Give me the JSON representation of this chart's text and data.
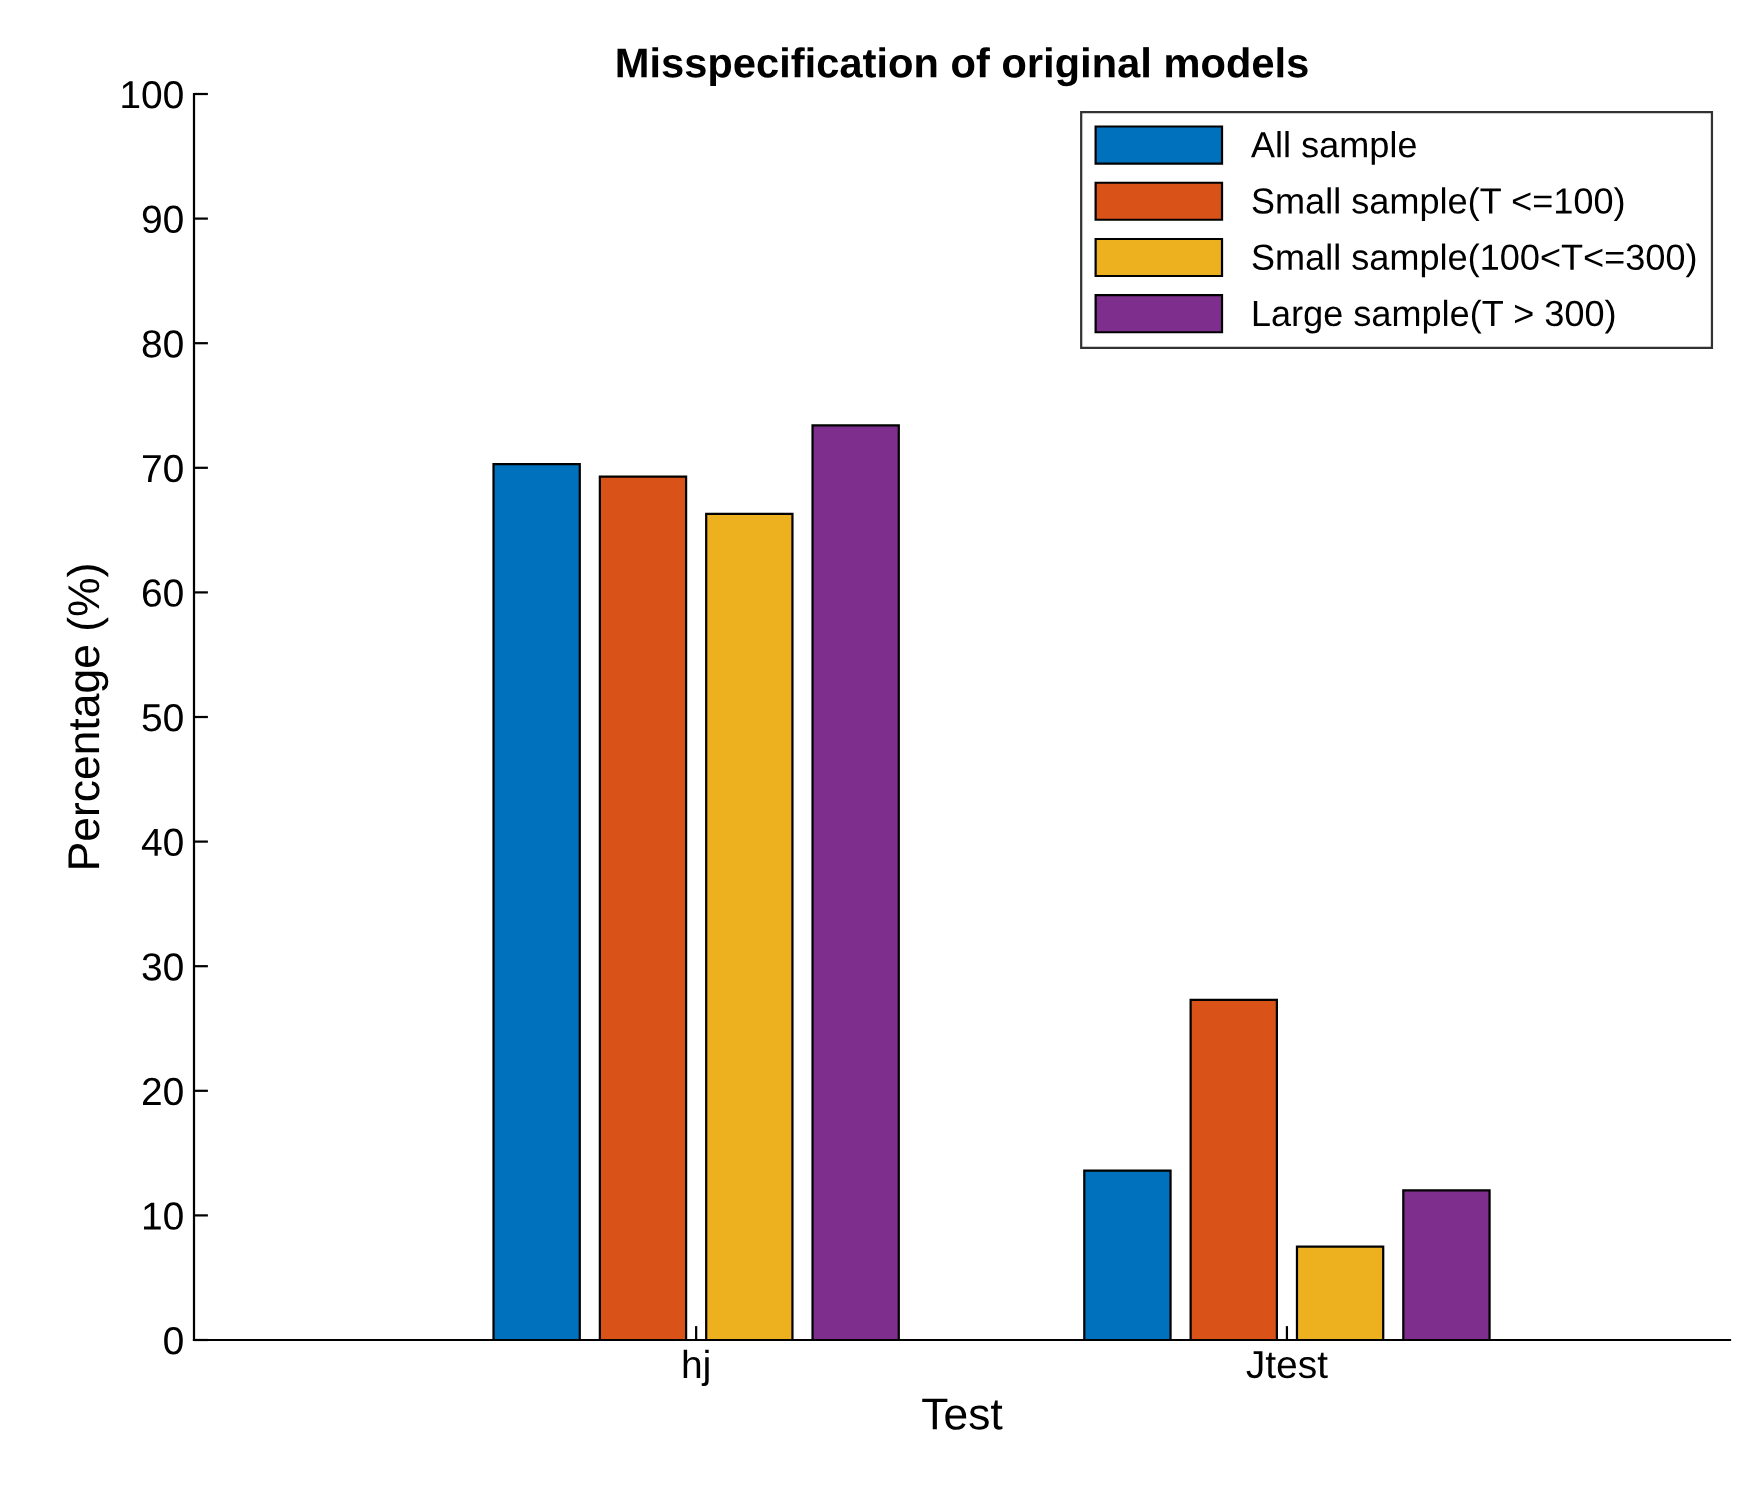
{
  "chart_data": {
    "type": "bar",
    "title": "Misspecification of original models",
    "xlabel": "Test",
    "ylabel": "Percentage (%)",
    "categories": [
      "hj",
      "Jtest"
    ],
    "series": [
      {
        "name": "All sample",
        "color": "#0072bd",
        "values": [
          70.3,
          13.6
        ]
      },
      {
        "name": "Small sample(T <=100)",
        "color": "#d95319",
        "values": [
          69.3,
          27.3
        ]
      },
      {
        "name": "Small sample(100<T<=300)",
        "color": "#edb120",
        "values": [
          66.3,
          7.5
        ]
      },
      {
        "name": "Large sample(T > 300)",
        "color": "#7e2f8e",
        "values": [
          73.4,
          12.0
        ]
      }
    ],
    "ylim": [
      0,
      100
    ],
    "yticks": [
      0,
      10,
      20,
      30,
      40,
      50,
      60,
      70,
      80,
      90,
      100
    ],
    "grid": false,
    "legend": "top right"
  }
}
